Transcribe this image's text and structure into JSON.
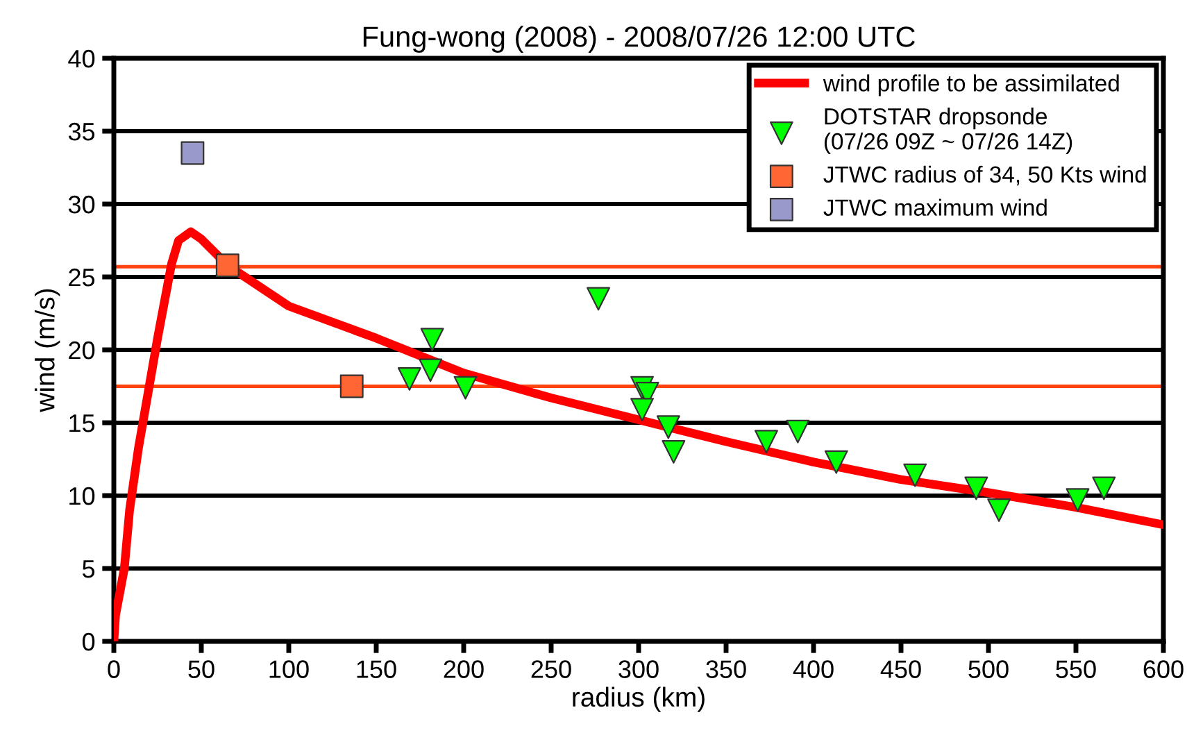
{
  "chart_data": {
    "type": "scatter",
    "title": "Fung-wong (2008) - 2008/07/26 12:00 UTC",
    "xlabel": "radius (km)",
    "ylabel": "wind (m/s)",
    "xlim": [
      0,
      600
    ],
    "xticks": [
      0,
      50,
      100,
      150,
      200,
      250,
      300,
      350,
      400,
      450,
      500,
      550,
      600
    ],
    "ylim": [
      0,
      40
    ],
    "yticks": [
      0,
      5,
      10,
      15,
      20,
      25,
      30,
      35,
      40
    ],
    "grid": "y",
    "legend": "top right",
    "series": [
      {
        "name": "wind profile to be assimilated",
        "type": "line",
        "color": "#ff0000",
        "marker": "none",
        "line_style": "solid",
        "x": [
          0,
          1,
          6,
          9,
          14,
          25,
          33,
          37,
          44,
          50,
          65,
          100,
          150,
          200,
          250,
          300,
          350,
          400,
          450,
          500,
          550,
          600
        ],
        "values": [
          0,
          1.8,
          5,
          9,
          13.2,
          20.8,
          25.9,
          27.5,
          28.1,
          27.6,
          25.8,
          23,
          20.8,
          18.4,
          16.7,
          15.2,
          13.7,
          12.3,
          11.1,
          10.2,
          9.2,
          8.0
        ]
      },
      {
        "name": "DOTSTAR dropsonde\n(07/26 09Z ~ 07/26 14Z)",
        "color": "#00ff00",
        "marker": "triangle",
        "x": [
          169,
          182,
          181,
          201,
          277,
          302,
          305,
          302,
          317,
          320,
          373,
          391,
          413,
          458,
          493,
          506,
          551,
          566
        ],
        "values": [
          18.0,
          20.7,
          18.6,
          17.4,
          23.5,
          17.4,
          17.0,
          15.9,
          14.7,
          13.0,
          13.7,
          14.4,
          12.3,
          11.4,
          10.5,
          9.0,
          9.7,
          10.5
        ]
      },
      {
        "name": "JTWC radius of 34, 50 Kts wind",
        "color": "#ff6633",
        "marker": "square",
        "x": [
          65,
          136
        ],
        "values": [
          25.8,
          17.5
        ]
      },
      {
        "name": "JTWC maximum wind",
        "color": "#9999cc",
        "marker": "square",
        "x": [
          45
        ],
        "values": [
          33.5
        ]
      }
    ],
    "ref_lines": [
      {
        "axis": "y",
        "value": 25.7,
        "color": "#ff4411"
      },
      {
        "axis": "y",
        "value": 17.5,
        "color": "#ff4411"
      }
    ]
  }
}
